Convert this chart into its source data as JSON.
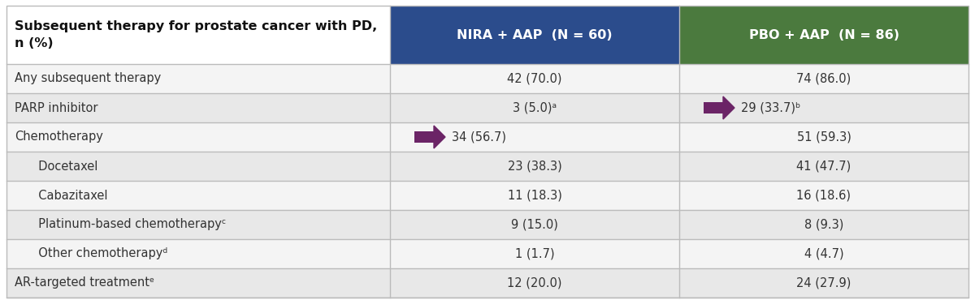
{
  "header_col": "Subsequent therapy for prostate cancer with PD,\nn (%)",
  "col1_header": "NIRA + AAP  (N = 60)",
  "col2_header": "PBO + AAP  (N = 86)",
  "col1_color": "#2B4C8C",
  "col2_color": "#4B7A3E",
  "header_bg": "#FFFFFF",
  "row_bg_alt": "#E8E8E8",
  "row_bg_norm": "#F4F4F4",
  "arrow_color": "#6B2466",
  "rows": [
    {
      "label": "Any subsequent therapy",
      "col1": "42 (70.0)",
      "col2": "74 (86.0)",
      "arrow_col1": false,
      "arrow_col2": false,
      "indent": false
    },
    {
      "label": "PARP inhibitor",
      "col1": "3 (5.0)ᵃ",
      "col2": "29 (33.7)ᵇ",
      "arrow_col1": false,
      "arrow_col2": true,
      "indent": false
    },
    {
      "label": "Chemotherapy",
      "col1": "34 (56.7)",
      "col2": "51 (59.3)",
      "arrow_col1": true,
      "arrow_col2": false,
      "indent": false
    },
    {
      "label": "  Docetaxel",
      "col1": "23 (38.3)",
      "col2": "41 (47.7)",
      "arrow_col1": false,
      "arrow_col2": false,
      "indent": true
    },
    {
      "label": "  Cabazitaxel",
      "col1": "11 (18.3)",
      "col2": "16 (18.6)",
      "arrow_col1": false,
      "arrow_col2": false,
      "indent": true
    },
    {
      "label": "  Platinum-based chemotherapyᶜ",
      "col1": "9 (15.0)",
      "col2": "8 (9.3)",
      "arrow_col1": false,
      "arrow_col2": false,
      "indent": true
    },
    {
      "label": "  Other chemotherapyᵈ",
      "col1": "1 (1.7)",
      "col2": "4 (4.7)",
      "arrow_col1": false,
      "arrow_col2": false,
      "indent": true
    },
    {
      "label": "AR-targeted treatmentᵉ",
      "col1": "12 (20.0)",
      "col2": "24 (27.9)",
      "arrow_col1": false,
      "arrow_col2": false,
      "indent": false
    }
  ],
  "border_color": "#BBBBBB",
  "text_color": "#333333",
  "font_size": 10.5,
  "header_font_size": 11.5
}
